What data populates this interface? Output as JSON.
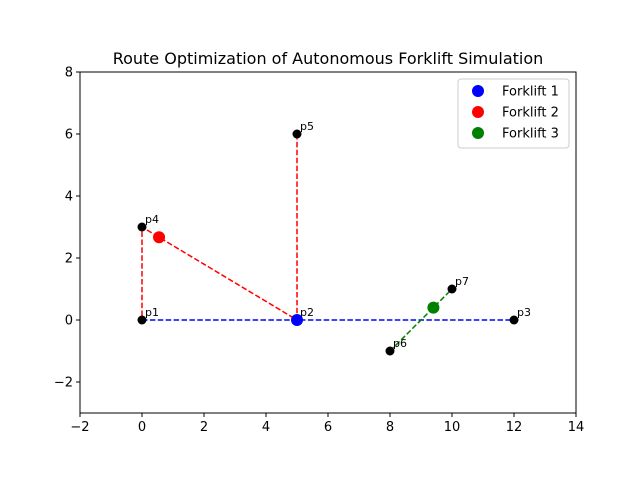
{
  "chart_data": {
    "type": "scatter",
    "title": "Route Optimization of Autonomous Forklift Simulation",
    "xlabel": "",
    "ylabel": "",
    "xlim": [
      -2,
      14
    ],
    "ylim": [
      -3,
      8
    ],
    "x_ticks": [
      -2,
      0,
      2,
      4,
      6,
      8,
      10,
      12,
      14
    ],
    "y_ticks": [
      -2,
      0,
      2,
      4,
      6,
      8
    ],
    "x_tick_labels": [
      "−2",
      "0",
      "2",
      "4",
      "6",
      "8",
      "10",
      "12",
      "14"
    ],
    "y_tick_labels": [
      "−2",
      "0",
      "2",
      "4",
      "6",
      "8"
    ],
    "grid": false,
    "legend_position": "top-right",
    "points": [
      {
        "label": "p1",
        "x": 0,
        "y": 0
      },
      {
        "label": "p2",
        "x": 5,
        "y": 0
      },
      {
        "label": "p3",
        "x": 12,
        "y": 0
      },
      {
        "label": "p4",
        "x": 0,
        "y": 3
      },
      {
        "label": "p5",
        "x": 5,
        "y": 6
      },
      {
        "label": "p6",
        "x": 8,
        "y": -1
      },
      {
        "label": "p7",
        "x": 10,
        "y": 1
      }
    ],
    "point_color": "#000000",
    "routes": [
      {
        "name": "Forklift 1",
        "color": "#0000ff",
        "path": [
          [
            0,
            0
          ],
          [
            12,
            0
          ]
        ],
        "position": [
          5,
          0
        ]
      },
      {
        "name": "Forklift 2",
        "color": "#ff0000",
        "path": [
          [
            5,
            6
          ],
          [
            5,
            0
          ],
          [
            0,
            3
          ],
          [
            0,
            0
          ]
        ],
        "position": [
          0.55,
          2.67
        ]
      },
      {
        "name": "Forklift 3",
        "color": "#008000",
        "path": [
          [
            8,
            -1
          ],
          [
            10,
            1
          ]
        ],
        "position": [
          9.4,
          0.4
        ]
      }
    ]
  }
}
